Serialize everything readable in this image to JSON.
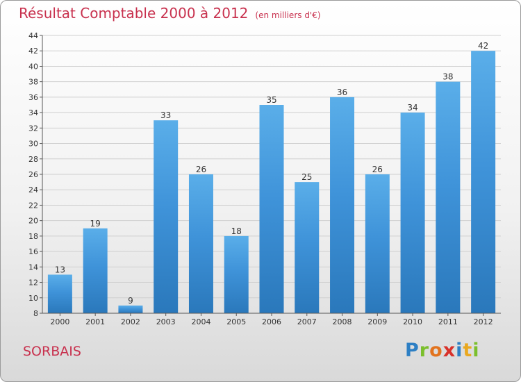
{
  "chart_data": {
    "type": "bar",
    "title": "Résultat Comptable 2000 à 2012",
    "subtitle": "(en milliers d'€)",
    "categories": [
      "2000",
      "2001",
      "2002",
      "2003",
      "2004",
      "2005",
      "2006",
      "2007",
      "2008",
      "2009",
      "2010",
      "2011",
      "2012"
    ],
    "values": [
      13,
      19,
      9,
      33,
      26,
      18,
      35,
      25,
      36,
      26,
      34,
      38,
      42
    ],
    "yticks": [
      8,
      10,
      12,
      14,
      16,
      18,
      20,
      22,
      24,
      26,
      28,
      30,
      32,
      34,
      36,
      38,
      40,
      42,
      44
    ],
    "ylim": [
      8,
      44
    ],
    "grid": true,
    "bar_color": "#3f93d9",
    "bar_color_light": "#5aaee9",
    "bar_color_dark": "#2a78bb"
  },
  "location": "SORBAIS",
  "logo": {
    "text": "Proxiti",
    "letter_colors": [
      "#2d7fc4",
      "#7bbf2c",
      "#e2731e",
      "#d8312a",
      "#2d7fc4",
      "#e9a820",
      "#7bbf2c"
    ]
  }
}
